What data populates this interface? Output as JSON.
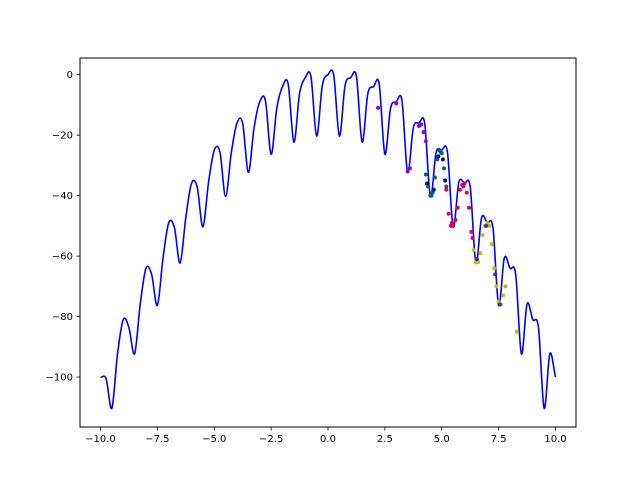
{
  "chart_data": {
    "type": "line",
    "title": "",
    "xlabel": "",
    "ylabel": "",
    "xlim": [
      -10.9,
      10.9
    ],
    "ylim": [
      -116.5,
      5.5
    ],
    "grid": false,
    "legend": "none",
    "x_ticks": [
      {
        "value": -10.0,
        "label": "−10.0"
      },
      {
        "value": -7.5,
        "label": "−7.5"
      },
      {
        "value": -5.0,
        "label": "−5.0"
      },
      {
        "value": -2.5,
        "label": "−2.5"
      },
      {
        "value": 0.0,
        "label": "0.0"
      },
      {
        "value": 2.5,
        "label": "2.5"
      },
      {
        "value": 5.0,
        "label": "5.0"
      },
      {
        "value": 7.5,
        "label": "7.5"
      },
      {
        "value": 10.0,
        "label": "10.0"
      }
    ],
    "y_ticks": [
      {
        "value": 0,
        "label": "0"
      },
      {
        "value": -20,
        "label": "−20"
      },
      {
        "value": -40,
        "label": "−40"
      },
      {
        "value": -60,
        "label": "−60"
      },
      {
        "value": -80,
        "label": "−80"
      },
      {
        "value": -100,
        "label": "−100"
      }
    ],
    "curve": {
      "color": "#0000ff",
      "x": [
        -10.0,
        -9.75,
        -9.5,
        -9.25,
        -9.0,
        -8.75,
        -8.5,
        -8.25,
        -8.0,
        -7.75,
        -7.5,
        -7.25,
        -7.0,
        -6.75,
        -6.5,
        -6.25,
        -6.0,
        -5.75,
        -5.5,
        -5.25,
        -5.0,
        -4.75,
        -4.5,
        -4.25,
        -4.0,
        -3.75,
        -3.5,
        -3.25,
        -3.0,
        -2.75,
        -2.5,
        -2.25,
        -2.0,
        -1.75,
        -1.5,
        -1.25,
        -1.0,
        -0.75,
        -0.5,
        -0.25,
        0.0,
        0.25,
        0.5,
        0.75,
        1.0,
        1.25,
        1.5,
        1.75,
        2.0,
        2.25,
        2.5,
        2.75,
        3.0,
        3.25,
        3.5,
        3.75,
        4.0,
        4.25,
        4.5,
        4.75,
        5.0,
        5.25,
        5.5,
        5.75,
        6.0,
        6.25,
        6.5,
        6.75,
        7.0,
        7.25,
        7.5,
        7.75,
        8.0,
        8.25,
        8.5,
        8.75,
        9.0,
        9.25,
        9.5,
        9.75,
        10.0
      ],
      "y": [
        -100,
        -100.6,
        -110.3,
        -92.3,
        -81,
        -83.6,
        -92.3,
        -75.8,
        -64,
        -66.1,
        -76.3,
        -60.6,
        -49,
        -50.6,
        -62.3,
        -47.3,
        -36,
        -37.1,
        -50.3,
        -35.6,
        -25,
        -25.6,
        -40.3,
        -25.8,
        -16,
        -16.1,
        -32.3,
        -17.6,
        -9,
        -8.6,
        -26.3,
        -11.1,
        -4,
        -3.1,
        -22.3,
        -6.3,
        -1,
        -0.6,
        -20.3,
        -3.6,
        0,
        -0.1,
        -20.3,
        -3.6,
        -1,
        -0.6,
        -22.3,
        -6.3,
        -4,
        -3.1,
        -26.3,
        -11.1,
        -9,
        -8.6,
        -32.3,
        -17.6,
        -16,
        -16.1,
        -40.3,
        -25.8,
        -25,
        -25.6,
        -50.3,
        -35.6,
        -36,
        -37.1,
        -62.3,
        -47.3,
        -49,
        -50.6,
        -76.3,
        -60.6,
        -64,
        -66.1,
        -92.3,
        -75.8,
        -81,
        -83.6,
        -110.3,
        -92.3,
        -100
      ]
    },
    "sample_series": [
      {
        "color": "#9900cc",
        "x": [
          2.2,
          3.0,
          3.5,
          3.6,
          4.0,
          4.1,
          4.2,
          4.3
        ],
        "y": [
          -11,
          -9.5,
          -32,
          -31,
          -17,
          -16.5,
          -19,
          -22
        ]
      },
      {
        "color": "#006666",
        "x": [
          4.3,
          4.4,
          4.5,
          4.6,
          4.7,
          4.8,
          4.9,
          5.0,
          5.1,
          5.2,
          4.55,
          4.95
        ],
        "y": [
          -33,
          -37,
          -40,
          -39,
          -34,
          -28,
          -25,
          -26,
          -31,
          -37,
          -40,
          -25.5
        ]
      },
      {
        "color": "#000099",
        "x": [
          4.35,
          4.65,
          4.85,
          5.05,
          5.15
        ],
        "y": [
          -36,
          -38,
          -27,
          -28,
          -35
        ]
      },
      {
        "color": "#dd0055",
        "x": [
          5.2,
          5.3,
          5.4,
          5.5,
          5.6,
          5.7,
          5.8,
          5.9,
          6.0,
          6.1,
          6.2,
          6.3,
          6.35,
          5.45,
          5.95
        ],
        "y": [
          -38,
          -46,
          -50,
          -50,
          -48,
          -44,
          -38,
          -36.5,
          -36,
          -39,
          -44,
          -52,
          -54,
          -49,
          -37
        ]
      },
      {
        "color": "#ccbb00",
        "x": [
          6.4,
          6.5,
          6.6,
          6.7,
          6.8,
          6.9,
          7.0,
          7.1,
          7.2,
          7.3,
          7.4,
          7.5,
          7.6,
          7.7,
          7.8,
          8.3
        ],
        "y": [
          -58,
          -62,
          -62,
          -59,
          -53,
          -50,
          -49,
          -50,
          -56,
          -64,
          -70,
          -75,
          -76,
          -73,
          -70,
          -85
        ]
      },
      {
        "color": "#3333aa",
        "x": [
          6.55,
          6.95,
          7.35,
          7.55
        ],
        "y": [
          -61,
          -50,
          -66,
          -76
        ]
      }
    ]
  }
}
